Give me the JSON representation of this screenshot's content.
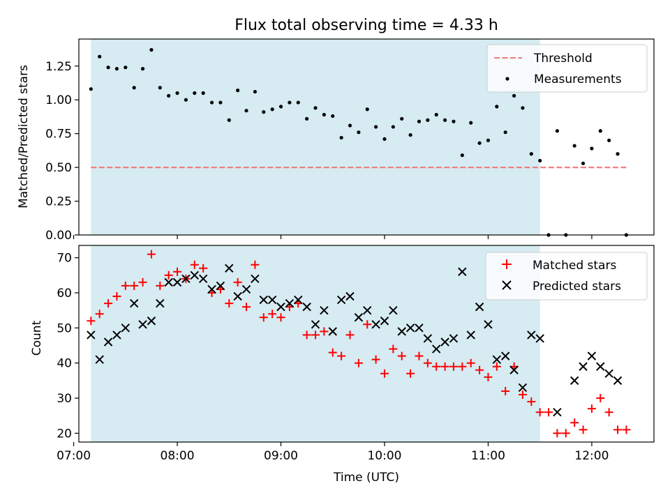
{
  "title": "Flux total observing time = 4.33 h",
  "colors": {
    "shade": "#add8e6",
    "threshold": "#f08080",
    "matched": "#ff0000",
    "predicted": "#000000",
    "measurements": "#000000"
  },
  "chart_data": [
    {
      "type": "scatter",
      "panel": "top",
      "ylabel": "Matched/Predicted stars",
      "xlim": [
        "07:03",
        "12:36"
      ],
      "ylim": [
        0,
        1.45
      ],
      "yticks": [
        0.0,
        0.25,
        0.5,
        0.75,
        1.0,
        1.25
      ],
      "ytick_labels": [
        "0.00",
        "0.25",
        "0.50",
        "0.75",
        "1.00",
        "1.25"
      ],
      "shaded_span": [
        "07:10",
        "11:30"
      ],
      "legend": "top-right",
      "threshold": {
        "name": "Threshold",
        "value": 0.5,
        "x": [
          "07:10",
          "12:20"
        ],
        "style": "dashed"
      },
      "series": [
        {
          "name": "Measurements",
          "marker": "dot",
          "x": [
            "07:10",
            "07:15",
            "07:20",
            "07:25",
            "07:30",
            "07:35",
            "07:40",
            "07:45",
            "07:50",
            "07:55",
            "08:00",
            "08:05",
            "08:10",
            "08:15",
            "08:20",
            "08:25",
            "08:30",
            "08:35",
            "08:40",
            "08:45",
            "08:50",
            "08:55",
            "09:00",
            "09:05",
            "09:10",
            "09:15",
            "09:20",
            "09:25",
            "09:30",
            "09:35",
            "09:40",
            "09:45",
            "09:50",
            "09:55",
            "10:00",
            "10:05",
            "10:10",
            "10:15",
            "10:20",
            "10:25",
            "10:30",
            "10:35",
            "10:40",
            "10:45",
            "10:50",
            "10:55",
            "11:00",
            "11:05",
            "11:10",
            "11:15",
            "11:20",
            "11:25",
            "11:30",
            "11:35",
            "11:40",
            "11:45",
            "11:50",
            "11:55",
            "12:00",
            "12:05",
            "12:10",
            "12:15",
            "12:20"
          ],
          "y": [
            1.08,
            1.32,
            1.24,
            1.23,
            1.24,
            1.09,
            1.23,
            1.37,
            1.09,
            1.03,
            1.05,
            1.0,
            1.05,
            1.05,
            0.98,
            0.98,
            0.85,
            1.07,
            0.92,
            1.06,
            0.91,
            0.93,
            0.95,
            0.98,
            0.98,
            0.86,
            0.94,
            0.89,
            0.88,
            0.72,
            0.81,
            0.76,
            0.93,
            0.8,
            0.71,
            0.8,
            0.86,
            0.74,
            0.84,
            0.85,
            0.89,
            0.85,
            0.84,
            0.59,
            0.83,
            0.68,
            0.7,
            0.95,
            0.76,
            1.03,
            0.94,
            0.6,
            0.55,
            0.0,
            0.77,
            0.0,
            0.66,
            0.53,
            0.64,
            0.77,
            0.7,
            0.6,
            0.0
          ]
        }
      ]
    },
    {
      "type": "scatter",
      "panel": "bottom",
      "xlabel": "Time (UTC)",
      "ylabel": "Count",
      "xlim": [
        "07:03",
        "12:36"
      ],
      "ylim": [
        17.5,
        73.5
      ],
      "yticks": [
        20,
        30,
        40,
        50,
        60,
        70
      ],
      "ytick_labels": [
        "20",
        "30",
        "40",
        "50",
        "60",
        "70"
      ],
      "xticks": [
        "07:00",
        "08:00",
        "09:00",
        "10:00",
        "11:00",
        "12:00"
      ],
      "xtick_labels": [
        "07:00",
        "08:00",
        "09:00",
        "10:00",
        "11:00",
        "12:00"
      ],
      "shaded_span": [
        "07:10",
        "11:30"
      ],
      "legend": "top-right",
      "series": [
        {
          "name": "Matched stars",
          "marker": "plus",
          "x": [
            "07:10",
            "07:15",
            "07:20",
            "07:25",
            "07:30",
            "07:35",
            "07:40",
            "07:45",
            "07:50",
            "07:55",
            "08:00",
            "08:05",
            "08:10",
            "08:15",
            "08:20",
            "08:25",
            "08:30",
            "08:35",
            "08:40",
            "08:45",
            "08:50",
            "08:55",
            "09:00",
            "09:05",
            "09:10",
            "09:15",
            "09:20",
            "09:25",
            "09:30",
            "09:35",
            "09:40",
            "09:45",
            "09:50",
            "09:55",
            "10:00",
            "10:05",
            "10:10",
            "10:15",
            "10:20",
            "10:25",
            "10:30",
            "10:35",
            "10:40",
            "10:45",
            "10:50",
            "10:55",
            "11:00",
            "11:05",
            "11:10",
            "11:15",
            "11:20",
            "11:25",
            "11:30",
            "11:35",
            "11:40",
            "11:45",
            "11:50",
            "11:55",
            "12:00",
            "12:05",
            "12:10",
            "12:15",
            "12:20"
          ],
          "y": [
            52,
            54,
            57,
            59,
            62,
            62,
            63,
            71,
            62,
            65,
            66,
            64,
            68,
            67,
            60,
            61,
            57,
            63,
            56,
            68,
            53,
            54,
            53,
            56,
            57,
            48,
            48,
            49,
            43,
            42,
            48,
            40,
            51,
            41,
            37,
            44,
            42,
            37,
            42,
            40,
            39,
            39,
            39,
            39,
            40,
            38,
            36,
            39,
            32,
            39,
            31,
            29,
            26,
            26,
            20,
            20,
            23,
            21,
            27,
            30,
            26,
            21,
            21
          ]
        },
        {
          "name": "Predicted stars",
          "marker": "x",
          "x": [
            "07:10",
            "07:15",
            "07:20",
            "07:25",
            "07:30",
            "07:35",
            "07:40",
            "07:45",
            "07:50",
            "07:55",
            "08:00",
            "08:05",
            "08:10",
            "08:15",
            "08:20",
            "08:25",
            "08:30",
            "08:35",
            "08:40",
            "08:45",
            "08:50",
            "08:55",
            "09:00",
            "09:05",
            "09:10",
            "09:15",
            "09:20",
            "09:25",
            "09:30",
            "09:35",
            "09:40",
            "09:45",
            "09:50",
            "09:55",
            "10:00",
            "10:05",
            "10:10",
            "10:15",
            "10:20",
            "10:25",
            "10:30",
            "10:35",
            "10:40",
            "10:45",
            "10:50",
            "10:55",
            "11:00",
            "11:05",
            "11:10",
            "11:15",
            "11:20",
            "11:25",
            "11:30",
            "11:40",
            "11:50",
            "11:55",
            "12:00",
            "12:05",
            "12:10",
            "12:15"
          ],
          "y": [
            48,
            41,
            46,
            48,
            50,
            57,
            51,
            52,
            57,
            63,
            63,
            64,
            65,
            64,
            61,
            62,
            67,
            59,
            61,
            64,
            58,
            58,
            56,
            57,
            58,
            56,
            51,
            55,
            49,
            58,
            59,
            53,
            55,
            51,
            52,
            55,
            49,
            50,
            50,
            47,
            44,
            46,
            47,
            66,
            48,
            56,
            51,
            41,
            42,
            38,
            33,
            48,
            47,
            26,
            35,
            39,
            42,
            39,
            37,
            35
          ]
        }
      ]
    }
  ]
}
